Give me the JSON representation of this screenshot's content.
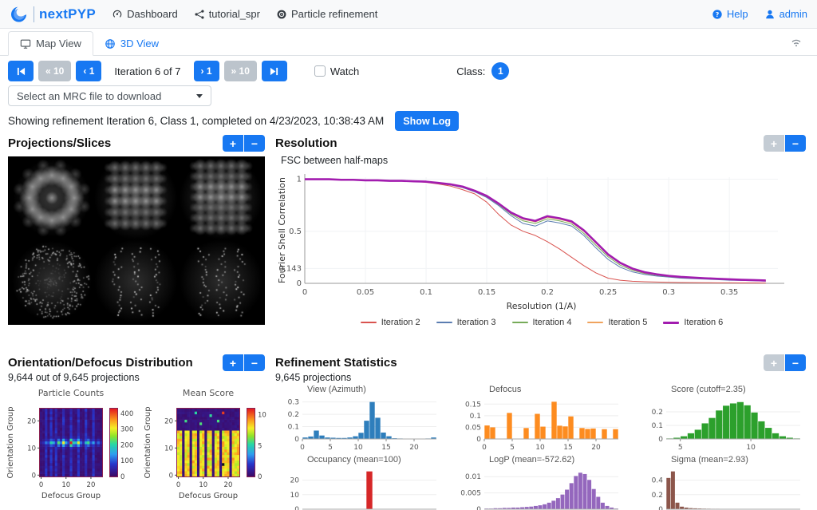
{
  "colors": {
    "accent": "#1778f2",
    "button_gray": "#bcc4cc",
    "pm_gray": "#c4ccd4"
  },
  "topbar": {
    "brand": "nextPYP",
    "nav_dashboard": "Dashboard",
    "nav_project": "tutorial_spr",
    "nav_block": "Particle refinement",
    "help": "Help",
    "user": "admin"
  },
  "tabs": {
    "map_view": "Map View",
    "three_d": "3D View"
  },
  "iteration": {
    "back10": "« 10",
    "back1": "‹ 1",
    "label": "Iteration 6 of 7",
    "fwd1": "› 1",
    "fwd10": "» 10",
    "watch": "Watch",
    "class_label": "Class:",
    "class_value": "1"
  },
  "mrc_select": {
    "value": "Select an MRC file to download"
  },
  "statusbar": {
    "text": "Showing refinement Iteration 6, Class 1, completed on 4/23/2023, 10:38:43 AM",
    "show_log": "Show Log"
  },
  "panels": {
    "projections_title": "Projections/Slices",
    "resolution_title": "Resolution",
    "orientation_title": "Orientation/Defocus Distribution",
    "orientation_subtitle": "9,644 out of 9,645 projections",
    "statistics_title": "Refinement Statistics",
    "statistics_subtitle": "9,645 projections"
  },
  "chart_data": [
    {
      "id": "fsc",
      "type": "line",
      "title": "FSC between half-maps",
      "xlabel": "Resolution (1/A)",
      "ylabel": "Fourier Shell Correlation",
      "xlim": [
        0,
        0.39
      ],
      "ylim": [
        0,
        1.02
      ],
      "xticks": [
        0,
        0.05,
        0.1,
        0.15,
        0.2,
        0.25,
        0.3,
        0.35
      ],
      "yticks": [
        0,
        0.143,
        0.5,
        1
      ],
      "grid": true,
      "legend_position": "bottom",
      "x": [
        0,
        0.01,
        0.02,
        0.03,
        0.04,
        0.05,
        0.06,
        0.07,
        0.08,
        0.09,
        0.1,
        0.11,
        0.12,
        0.13,
        0.14,
        0.15,
        0.16,
        0.17,
        0.18,
        0.19,
        0.2,
        0.21,
        0.22,
        0.23,
        0.24,
        0.25,
        0.26,
        0.27,
        0.28,
        0.29,
        0.3,
        0.31,
        0.32,
        0.33,
        0.34,
        0.35,
        0.36,
        0.37,
        0.38
      ],
      "series": [
        {
          "name": "Iteration 2",
          "color": "#d9534f",
          "width": 1,
          "values": [
            1,
            1,
            1,
            0.995,
            0.995,
            0.99,
            0.99,
            0.985,
            0.985,
            0.98,
            0.97,
            0.955,
            0.935,
            0.9,
            0.86,
            0.78,
            0.66,
            0.56,
            0.5,
            0.46,
            0.4,
            0.33,
            0.25,
            0.17,
            0.1,
            0.05,
            0.03,
            0.02,
            0.015,
            0.012,
            0.01,
            0.008,
            0.007,
            0.006,
            0.005,
            0.005,
            0.004,
            0.004,
            0.003
          ]
        },
        {
          "name": "Iteration 3",
          "color": "#5b7db1",
          "width": 1,
          "values": [
            1,
            1,
            1,
            0.995,
            0.995,
            0.99,
            0.99,
            0.985,
            0.985,
            0.98,
            0.975,
            0.96,
            0.945,
            0.92,
            0.88,
            0.825,
            0.745,
            0.65,
            0.575,
            0.55,
            0.6,
            0.58,
            0.55,
            0.46,
            0.34,
            0.23,
            0.155,
            0.11,
            0.085,
            0.07,
            0.06,
            0.05,
            0.045,
            0.04,
            0.035,
            0.03,
            0.028,
            0.025,
            0.02
          ]
        },
        {
          "name": "Iteration 4",
          "color": "#77ab59",
          "width": 1,
          "values": [
            1,
            1,
            1,
            0.995,
            0.995,
            0.99,
            0.99,
            0.985,
            0.985,
            0.98,
            0.975,
            0.962,
            0.948,
            0.924,
            0.885,
            0.832,
            0.755,
            0.665,
            0.6,
            0.575,
            0.62,
            0.6,
            0.57,
            0.48,
            0.365,
            0.255,
            0.175,
            0.125,
            0.095,
            0.078,
            0.065,
            0.055,
            0.05,
            0.045,
            0.04,
            0.035,
            0.03,
            0.028,
            0.024
          ]
        },
        {
          "name": "Iteration 5",
          "color": "#f0a35e",
          "width": 1,
          "values": [
            1,
            1,
            1,
            0.995,
            0.995,
            0.99,
            0.99,
            0.985,
            0.985,
            0.98,
            0.976,
            0.963,
            0.95,
            0.927,
            0.888,
            0.838,
            0.762,
            0.675,
            0.615,
            0.59,
            0.635,
            0.615,
            0.585,
            0.5,
            0.385,
            0.27,
            0.19,
            0.135,
            0.1,
            0.082,
            0.068,
            0.058,
            0.052,
            0.047,
            0.042,
            0.037,
            0.032,
            0.029,
            0.025
          ]
        },
        {
          "name": "Iteration 6",
          "color": "#a21caf",
          "width": 2.6,
          "values": [
            1,
            1,
            1,
            0.995,
            0.995,
            0.99,
            0.99,
            0.985,
            0.985,
            0.98,
            0.977,
            0.965,
            0.952,
            0.93,
            0.89,
            0.84,
            0.765,
            0.68,
            0.625,
            0.6,
            0.645,
            0.625,
            0.595,
            0.51,
            0.395,
            0.278,
            0.197,
            0.142,
            0.107,
            0.087,
            0.072,
            0.062,
            0.055,
            0.049,
            0.044,
            0.039,
            0.034,
            0.031,
            0.027
          ]
        }
      ]
    },
    {
      "id": "particle_counts",
      "type": "heatmap",
      "title": "Particle Counts",
      "xlabel": "Defocus Group",
      "ylabel": "Orientation Group",
      "xticks": [
        0,
        10,
        20
      ],
      "yticks": [
        0,
        10,
        20
      ],
      "size": 25,
      "colorbar": {
        "min": 0,
        "max": 430,
        "ticks": [
          0,
          100,
          200,
          300,
          400
        ]
      },
      "base_range": [
        5,
        24
      ],
      "stripe_cols": [
        2,
        4,
        6,
        9,
        12,
        15,
        18,
        21
      ],
      "stripe_value": 65,
      "band_row": 12,
      "band_values": [
        40,
        60,
        120,
        90,
        200,
        160,
        80,
        230,
        120,
        310,
        150,
        90,
        430,
        200,
        170,
        300,
        120,
        60,
        180,
        220,
        90,
        150,
        60,
        110,
        50
      ],
      "seed": 7
    },
    {
      "id": "mean_score",
      "type": "heatmap",
      "title": "Mean Score",
      "xlabel": "Defocus Group",
      "ylabel": "Orientation Group",
      "xticks": [
        0,
        10,
        20
      ],
      "yticks": [
        0,
        10,
        20
      ],
      "size": 25,
      "colorbar": {
        "min": 0,
        "max": 11,
        "ticks": [
          0,
          5,
          10
        ]
      },
      "base_range": [
        7,
        9.3
      ],
      "zero_cols": [
        2,
        5,
        8,
        11,
        14,
        17,
        21
      ],
      "top_zero_row_start": 17,
      "accent_cells": [
        {
          "r": 20,
          "c": 3,
          "v": 5.6
        },
        {
          "r": 23,
          "c": 7,
          "v": 5.3
        },
        {
          "r": 19,
          "c": 9,
          "v": 5.8
        },
        {
          "r": 22,
          "c": 13,
          "v": 5.4
        },
        {
          "r": 20,
          "c": 16,
          "v": 5.7
        },
        {
          "r": 23,
          "c": 18,
          "v": 10.6
        },
        {
          "r": 4,
          "c": 18,
          "v": -1
        }
      ],
      "seed": 11
    },
    {
      "id": "view_azimuth",
      "type": "bar",
      "title": "View (Azimuth)",
      "color": "#2e7ebc",
      "x_start": 0,
      "bin_width": 1,
      "xticks": [
        0,
        5,
        10,
        15,
        20
      ],
      "yticks": [
        0,
        0.1,
        0.2,
        0.3
      ],
      "ymax": 0.33,
      "values": [
        0.012,
        0.02,
        0.068,
        0.028,
        0.012,
        0.01,
        0.008,
        0.008,
        0.012,
        0.022,
        0.05,
        0.148,
        0.3,
        0.172,
        0.052,
        0.022,
        0.006,
        0.004,
        0.003,
        0.003,
        0.003,
        0.003,
        0.004,
        0.012
      ]
    },
    {
      "id": "defocus",
      "type": "bar",
      "title": "Defocus",
      "color": "#fd8c20",
      "x_start": 0,
      "bin_width": 1,
      "xticks": [
        0,
        5,
        10,
        15,
        20
      ],
      "yticks": [
        0,
        0.05,
        0.1,
        0.15
      ],
      "ymax": 0.175,
      "values": [
        0.058,
        0.05,
        0,
        0,
        0.112,
        0,
        0,
        0.047,
        0,
        0.108,
        0.053,
        0,
        0.16,
        0.057,
        0.054,
        0.097,
        0,
        0.047,
        0.043,
        0.045,
        0,
        0.042,
        0,
        0.042
      ]
    },
    {
      "id": "score",
      "type": "bar",
      "title": "Score (cutoff=2.35)",
      "color": "#2ca02c",
      "x_start": 4,
      "bin_width": 0.5,
      "xticks": [
        5,
        10
      ],
      "yticks": [
        0,
        0.1,
        0.2
      ],
      "ymax": 0.3,
      "values": [
        0.004,
        0.009,
        0.02,
        0.042,
        0.068,
        0.115,
        0.155,
        0.21,
        0.245,
        0.262,
        0.272,
        0.248,
        0.195,
        0.13,
        0.082,
        0.042,
        0.02,
        0.009,
        0.004
      ]
    },
    {
      "id": "occupancy",
      "type": "bar",
      "title": "Occupancy (mean=100)",
      "color": "#d62728",
      "x_start": 0,
      "bin_width": 1,
      "xticks": [],
      "yticks": [
        0,
        10,
        20
      ],
      "ymax": 28,
      "values": [
        0,
        0,
        0,
        0,
        0,
        0,
        0,
        0,
        0,
        0,
        26,
        0,
        0,
        0,
        0,
        0,
        0,
        0,
        0,
        0,
        0
      ]
    },
    {
      "id": "logp",
      "type": "bar",
      "title": "LogP (mean=-572.62)",
      "color": "#9467bd",
      "x_start": 0,
      "bin_width": 1,
      "xticks": [],
      "yticks": [
        0,
        0.005,
        0.01
      ],
      "ymax": 0.0125,
      "values": [
        0.0002,
        0.0002,
        0.0003,
        0.0003,
        0.0004,
        0.0004,
        0.0005,
        0.0005,
        0.0006,
        0.0007,
        0.0008,
        0.001,
        0.0012,
        0.0015,
        0.002,
        0.0026,
        0.0034,
        0.0045,
        0.006,
        0.008,
        0.0102,
        0.0112,
        0.0108,
        0.009,
        0.0062,
        0.0038,
        0.002,
        0.001,
        0.0005,
        0.0002
      ]
    },
    {
      "id": "sigma",
      "type": "bar",
      "title": "Sigma (mean=2.93)",
      "color": "#8c564b",
      "x_start": 0,
      "bin_width": 1,
      "xticks": [],
      "yticks": [
        0,
        0.2,
        0.4
      ],
      "ymax": 0.56,
      "values": [
        0.43,
        0.52,
        0.09,
        0.035,
        0.022,
        0.015,
        0.012,
        0.01,
        0.008,
        0.007,
        0.006,
        0.006,
        0.005,
        0.005,
        0.004,
        0.004,
        0.004,
        0.003,
        0.003,
        0.003,
        0.003,
        0.002,
        0.002,
        0.002,
        0.002,
        0.002,
        0.002,
        0.002,
        0.002,
        0.002
      ]
    }
  ]
}
